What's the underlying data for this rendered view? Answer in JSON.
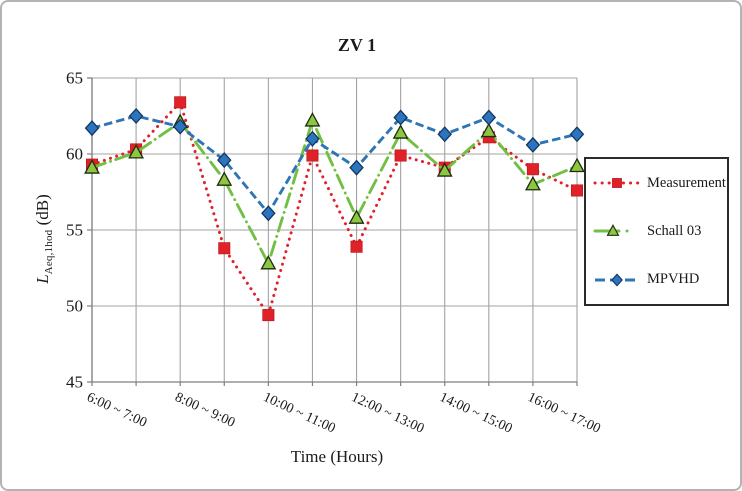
{
  "figure": {
    "title": "ZV 1",
    "xlabel": "Time (Hours)",
    "ylabel_prefix": "L",
    "ylabel_sub": "Aeq,1hod",
    "ylabel_suffix": " (dB)"
  },
  "chart_data": {
    "type": "line",
    "title": "ZV 1",
    "xlabel": "Time (Hours)",
    "ylabel": "L_Aeq,1hod (dB)",
    "ylim": [
      45,
      65
    ],
    "yticks": [
      45,
      50,
      55,
      60,
      65
    ],
    "grid": true,
    "legend_position": "right",
    "categories": [
      "6:00 ~ 7:00",
      "",
      "8:00 ~ 9:00",
      "",
      "10:00 ~ 11:00",
      "",
      "12:00 ~ 13:00",
      "",
      "14:00 ~ 15:00",
      "",
      "16:00 ~ 17:00",
      ""
    ],
    "series": [
      {
        "name": "Measurement",
        "color": "#e02128",
        "line_style": "dotted",
        "marker": "square",
        "marker_fill": "#e02128",
        "marker_stroke": "#b0161c",
        "values": [
          59.3,
          60.3,
          63.4,
          53.8,
          49.4,
          59.9,
          53.9,
          59.9,
          59.1,
          61.1,
          59.0,
          57.6
        ]
      },
      {
        "name": "Schall 03",
        "color": "#72bf44",
        "line_style": "dash-dot",
        "marker": "triangle",
        "marker_fill": "#8dc63f",
        "marker_stroke": "#1d2b12",
        "values": [
          59.1,
          60.1,
          62.1,
          58.3,
          52.8,
          62.2,
          55.8,
          61.4,
          58.9,
          61.5,
          58.0,
          59.2
        ]
      },
      {
        "name": "MPVHD",
        "color": "#2e75b6",
        "line_style": "dashed",
        "marker": "diamond",
        "marker_fill": "#2b74c0",
        "marker_stroke": "#14365c",
        "values": [
          61.7,
          62.5,
          61.8,
          59.6,
          56.1,
          61.0,
          59.1,
          62.4,
          61.3,
          62.4,
          60.6,
          61.3
        ]
      }
    ],
    "axis_color": "#7f7f7f",
    "grid_color": "#a3a3a3"
  }
}
